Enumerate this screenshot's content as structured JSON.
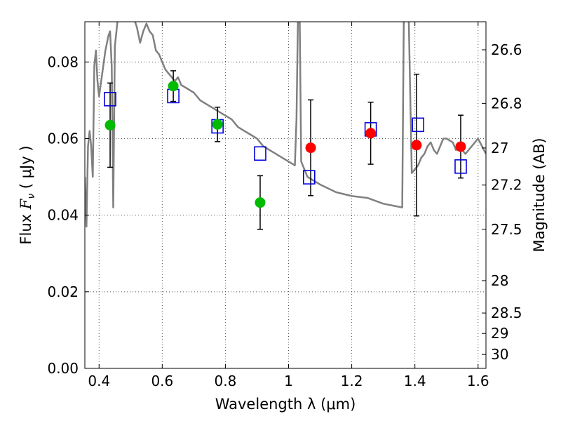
{
  "chart_data": {
    "type": "scatter",
    "title": "",
    "xlabel": "Wavelength  λ (μm)",
    "ylabel": "Flux  F_ν  ( μJy )",
    "ylabel_parts": {
      "pre": "Flux ",
      "sym": "F",
      "sub": "ν",
      "post": "  ( μJy )"
    },
    "y2label": "Magnitude (AB)",
    "xlim": [
      0.355,
      1.625
    ],
    "ylim": [
      0.0,
      0.0905
    ],
    "grid": true,
    "x_ticks": [
      0.4,
      0.6,
      0.8,
      1.0,
      1.2,
      1.4,
      1.6
    ],
    "x_tick_labels": [
      "0.4",
      "0.6",
      "0.8",
      "1",
      "1.2",
      "1.4",
      "1.6"
    ],
    "y_ticks": [
      0.0,
      0.02,
      0.04,
      0.06,
      0.08
    ],
    "y_tick_labels": [
      "0.00",
      "0.02",
      "0.04",
      "0.06",
      "0.08"
    ],
    "y2_ticks": [
      {
        "mag": 26.6,
        "label": "26.6"
      },
      {
        "mag": 26.8,
        "label": "26.8"
      },
      {
        "mag": 27.0,
        "label": "27"
      },
      {
        "mag": 27.2,
        "label": "27.2"
      },
      {
        "mag": 27.5,
        "label": "27.5"
      },
      {
        "mag": 28.0,
        "label": "28"
      },
      {
        "mag": 28.5,
        "label": "28.5"
      },
      {
        "mag": 29.0,
        "label": "29"
      },
      {
        "mag": 30.0,
        "label": "30"
      }
    ],
    "colors": {
      "green": "#00bb00",
      "red": "#ff0000",
      "model_box": "#0000dd",
      "sed": "#808080",
      "errorbar": "#000000",
      "grid": "#555555"
    },
    "observed_green": [
      {
        "x": 0.435,
        "y": 0.0635,
        "yerr": 0.011
      },
      {
        "x": 0.635,
        "y": 0.0737,
        "yerr": 0.004
      },
      {
        "x": 0.775,
        "y": 0.0637,
        "yerr": 0.0045
      },
      {
        "x": 0.91,
        "y": 0.0433,
        "yerr": 0.007
      }
    ],
    "observed_red": [
      {
        "x": 1.07,
        "y": 0.0576,
        "yerr": 0.0125
      },
      {
        "x": 1.26,
        "y": 0.0614,
        "yerr": 0.0081
      },
      {
        "x": 1.405,
        "y": 0.0583,
        "yerr": 0.0185
      },
      {
        "x": 1.545,
        "y": 0.0579,
        "yerr": 0.0082
      }
    ],
    "model_boxes": [
      {
        "x": 0.435,
        "y": 0.0703
      },
      {
        "x": 0.635,
        "y": 0.0711
      },
      {
        "x": 0.775,
        "y": 0.0632
      },
      {
        "x": 0.91,
        "y": 0.0561
      },
      {
        "x": 1.065,
        "y": 0.0499
      },
      {
        "x": 1.26,
        "y": 0.0624
      },
      {
        "x": 1.41,
        "y": 0.0636
      },
      {
        "x": 1.545,
        "y": 0.0527
      }
    ],
    "sed_curve": [
      [
        0.355,
        0.05
      ],
      [
        0.36,
        0.037
      ],
      [
        0.365,
        0.058
      ],
      [
        0.37,
        0.062
      ],
      [
        0.375,
        0.058
      ],
      [
        0.38,
        0.05
      ],
      [
        0.385,
        0.079
      ],
      [
        0.39,
        0.083
      ],
      [
        0.395,
        0.075
      ],
      [
        0.4,
        0.071
      ],
      [
        0.41,
        0.077
      ],
      [
        0.42,
        0.083
      ],
      [
        0.43,
        0.087
      ],
      [
        0.435,
        0.088
      ],
      [
        0.44,
        0.079
      ],
      [
        0.445,
        0.042
      ],
      [
        0.45,
        0.084
      ],
      [
        0.46,
        0.092
      ],
      [
        0.48,
        0.098
      ],
      [
        0.5,
        0.094
      ],
      [
        0.52,
        0.089
      ],
      [
        0.53,
        0.085
      ],
      [
        0.54,
        0.088
      ],
      [
        0.55,
        0.09
      ],
      [
        0.56,
        0.088
      ],
      [
        0.57,
        0.087
      ],
      [
        0.58,
        0.083
      ],
      [
        0.59,
        0.082
      ],
      [
        0.6,
        0.08
      ],
      [
        0.61,
        0.078
      ],
      [
        0.62,
        0.077
      ],
      [
        0.63,
        0.076
      ],
      [
        0.64,
        0.075
      ],
      [
        0.65,
        0.076
      ],
      [
        0.66,
        0.074
      ],
      [
        0.68,
        0.073
      ],
      [
        0.7,
        0.072
      ],
      [
        0.72,
        0.07
      ],
      [
        0.74,
        0.069
      ],
      [
        0.76,
        0.068
      ],
      [
        0.78,
        0.067
      ],
      [
        0.8,
        0.066
      ],
      [
        0.82,
        0.065
      ],
      [
        0.84,
        0.063
      ],
      [
        0.86,
        0.062
      ],
      [
        0.88,
        0.061
      ],
      [
        0.9,
        0.06
      ],
      [
        0.91,
        0.059
      ],
      [
        0.92,
        0.058
      ],
      [
        0.94,
        0.057
      ],
      [
        0.96,
        0.056
      ],
      [
        0.98,
        0.055
      ],
      [
        1.0,
        0.054
      ],
      [
        1.02,
        0.053
      ],
      [
        1.025,
        0.065
      ],
      [
        1.03,
        0.093
      ],
      [
        1.035,
        0.093
      ],
      [
        1.04,
        0.054
      ],
      [
        1.06,
        0.05
      ],
      [
        1.08,
        0.049
      ],
      [
        1.1,
        0.048
      ],
      [
        1.15,
        0.046
      ],
      [
        1.2,
        0.045
      ],
      [
        1.25,
        0.0445
      ],
      [
        1.3,
        0.043
      ],
      [
        1.33,
        0.0425
      ],
      [
        1.36,
        0.042
      ],
      [
        1.365,
        0.093
      ],
      [
        1.37,
        0.093
      ],
      [
        1.38,
        0.093
      ],
      [
        1.39,
        0.051
      ],
      [
        1.4,
        0.052
      ],
      [
        1.41,
        0.053
      ],
      [
        1.42,
        0.055
      ],
      [
        1.43,
        0.056
      ],
      [
        1.44,
        0.058
      ],
      [
        1.45,
        0.059
      ],
      [
        1.46,
        0.057
      ],
      [
        1.47,
        0.056
      ],
      [
        1.48,
        0.058
      ],
      [
        1.49,
        0.06
      ],
      [
        1.5,
        0.06
      ],
      [
        1.52,
        0.059
      ],
      [
        1.53,
        0.057
      ],
      [
        1.54,
        0.058
      ],
      [
        1.56,
        0.056
      ],
      [
        1.58,
        0.058
      ],
      [
        1.6,
        0.06
      ],
      [
        1.625,
        0.056
      ]
    ]
  }
}
